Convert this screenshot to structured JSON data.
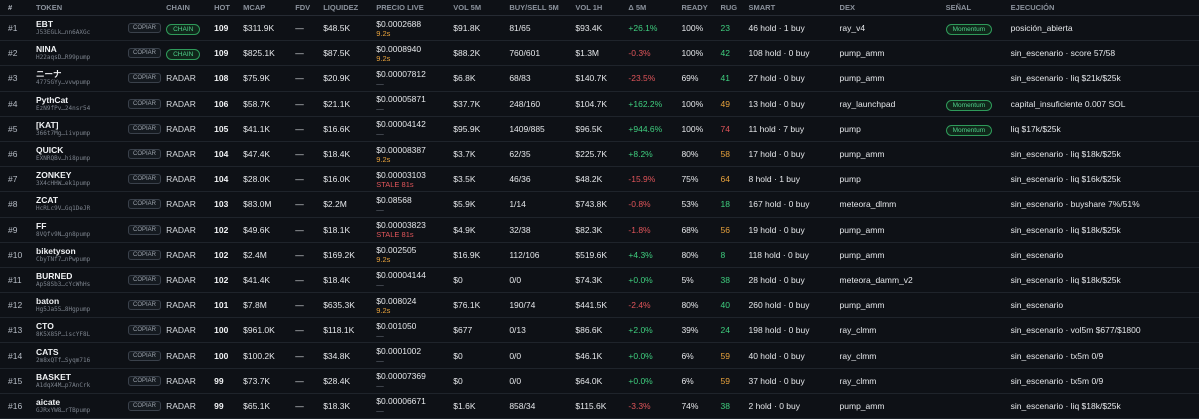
{
  "headers": {
    "rank": "#",
    "token": "TOKEN",
    "chain": "CHAIN",
    "hot": "HOT",
    "mcap": "MCAP",
    "fdv": "FDV",
    "liquidez": "LIQUIDEZ",
    "precio": "PRECIO LIVE",
    "vol5m": "VOL 5M",
    "buysell": "BUY/SELL 5M",
    "vol1h": "VOL 1H",
    "delta": "Δ 5M",
    "ready": "READY",
    "rug": "RUG",
    "smart": "SMART",
    "dex": "DEX",
    "senal": "SEÑAL",
    "ejecucion": "EJECUCIÓN"
  },
  "copy_label": "COPIAR",
  "rows": [
    {
      "rank": "#1",
      "name": "EBT",
      "addr": "J53EGLk…nn6AXGc",
      "chain": "CHAIN",
      "hot": "109",
      "mcap": "$311.9K",
      "fdv": "—",
      "liq": "$48.5K",
      "price": "$0.0002688",
      "sub": "9.2s",
      "sub_class": "sub-orange",
      "vol5m": "$91.8K",
      "bs": "81/65",
      "vol1h": "$93.4K",
      "delta": "+26.1%",
      "delta_class": "pos",
      "ready": "100%",
      "rug": "23",
      "rug_class": "rug-green",
      "smart": "46 hold · 1 buy",
      "dex": "ray_v4",
      "signal": "Momentum",
      "exec": "posición_abierta"
    },
    {
      "rank": "#2",
      "name": "NINA",
      "addr": "H22aqsD…R99pump",
      "chain": "CHAIN",
      "hot": "109",
      "mcap": "$825.1K",
      "fdv": "—",
      "liq": "$87.5K",
      "price": "$0.0008940",
      "sub": "9.2s",
      "sub_class": "sub-orange",
      "vol5m": "$88.2K",
      "bs": "760/601",
      "vol1h": "$1.3M",
      "delta": "-0.3%",
      "delta_class": "neg",
      "ready": "100%",
      "rug": "42",
      "rug_class": "rug-green",
      "smart": "108 hold · 0 buy",
      "dex": "pump_amm",
      "signal": "",
      "exec": "sin_escenario · score 57/58"
    },
    {
      "rank": "#3",
      "name": "ニーナ",
      "addr": "4775GYy…vvwpump",
      "chain": "RADAR",
      "hot": "108",
      "mcap": "$75.9K",
      "fdv": "—",
      "liq": "$20.9K",
      "price": "$0.00007812",
      "sub": "—",
      "sub_class": "sub-grey",
      "vol5m": "$6.8K",
      "bs": "68/83",
      "vol1h": "$140.7K",
      "delta": "-23.5%",
      "delta_class": "neg",
      "ready": "69%",
      "rug": "41",
      "rug_class": "rug-green",
      "smart": "27 hold · 0 buy",
      "dex": "pump_amm",
      "signal": "",
      "exec": "sin_escenario · liq $21k/$25k"
    },
    {
      "rank": "#4",
      "name": "PythCat",
      "addr": "EzN9fPv…24nsr54",
      "chain": "RADAR",
      "hot": "106",
      "mcap": "$58.7K",
      "fdv": "—",
      "liq": "$21.1K",
      "price": "$0.00005871",
      "sub": "—",
      "sub_class": "sub-grey",
      "vol5m": "$37.7K",
      "bs": "248/160",
      "vol1h": "$104.7K",
      "delta": "+162.2%",
      "delta_class": "pos",
      "ready": "100%",
      "rug": "49",
      "rug_class": "rug-orange",
      "smart": "13 hold · 0 buy",
      "dex": "ray_launchpad",
      "signal": "Momentum",
      "exec": "capital_insuficiente 0.007 SOL"
    },
    {
      "rank": "#5",
      "name": "[KAT]",
      "addr": "366t7Mg…iivpump",
      "chain": "RADAR",
      "hot": "105",
      "mcap": "$41.1K",
      "fdv": "—",
      "liq": "$16.6K",
      "price": "$0.00004142",
      "sub": "—",
      "sub_class": "sub-grey",
      "vol5m": "$95.9K",
      "bs": "1409/885",
      "vol1h": "$96.5K",
      "delta": "+944.6%",
      "delta_class": "pos",
      "ready": "100%",
      "rug": "74",
      "rug_class": "rug-red",
      "smart": "11 hold · 7 buy",
      "dex": "pump",
      "signal": "Momentum",
      "exec": "liq $17k/$25k"
    },
    {
      "rank": "#6",
      "name": "QUICK",
      "addr": "EXNRQBv…hi8pump",
      "chain": "RADAR",
      "hot": "104",
      "mcap": "$47.4K",
      "fdv": "—",
      "liq": "$18.4K",
      "price": "$0.00008387",
      "sub": "9.2s",
      "sub_class": "sub-orange",
      "vol5m": "$3.7K",
      "bs": "62/35",
      "vol1h": "$225.7K",
      "delta": "+8.2%",
      "delta_class": "pos",
      "ready": "80%",
      "rug": "58",
      "rug_class": "rug-orange",
      "smart": "17 hold · 0 buy",
      "dex": "pump_amm",
      "signal": "",
      "exec": "sin_escenario · liq $18k/$25k"
    },
    {
      "rank": "#7",
      "name": "ZONKEY",
      "addr": "3X4cHHW…ek1pump",
      "chain": "RADAR",
      "hot": "104",
      "mcap": "$28.0K",
      "fdv": "—",
      "liq": "$16.0K",
      "price": "$0.00003103",
      "sub": "STALE 81s",
      "sub_class": "sub-red",
      "vol5m": "$3.5K",
      "bs": "46/36",
      "vol1h": "$48.2K",
      "delta": "-15.9%",
      "delta_class": "neg",
      "ready": "75%",
      "rug": "64",
      "rug_class": "rug-orange",
      "smart": "8 hold · 1 buy",
      "dex": "pump",
      "signal": "",
      "exec": "sin_escenario · liq $16k/$25k"
    },
    {
      "rank": "#8",
      "name": "ZCAT",
      "addr": "HcRLc9V…Gq1DeJR",
      "chain": "RADAR",
      "hot": "103",
      "mcap": "$83.0M",
      "fdv": "—",
      "liq": "$2.2M",
      "price": "$0.08568",
      "sub": "—",
      "sub_class": "sub-grey",
      "vol5m": "$5.9K",
      "bs": "1/14",
      "vol1h": "$743.8K",
      "delta": "-0.8%",
      "delta_class": "neg",
      "ready": "53%",
      "rug": "18",
      "rug_class": "rug-green",
      "smart": "167 hold · 0 buy",
      "dex": "meteora_dlmm",
      "signal": "",
      "exec": "sin_escenario · buyshare 7%/51%"
    },
    {
      "rank": "#9",
      "name": "FF",
      "addr": "8VQfv9N…gn8pump",
      "chain": "RADAR",
      "hot": "102",
      "mcap": "$49.6K",
      "fdv": "—",
      "liq": "$18.1K",
      "price": "$0.00003823",
      "sub": "STALE 81s",
      "sub_class": "sub-red",
      "vol5m": "$4.9K",
      "bs": "32/38",
      "vol1h": "$82.3K",
      "delta": "-1.8%",
      "delta_class": "neg",
      "ready": "68%",
      "rug": "56",
      "rug_class": "rug-orange",
      "smart": "19 hold · 0 buy",
      "dex": "pump_amm",
      "signal": "",
      "exec": "sin_escenario · liq $18k/$25k"
    },
    {
      "rank": "#10",
      "name": "biketyson",
      "addr": "CbyTNf7…nPwpump",
      "chain": "RADAR",
      "hot": "102",
      "mcap": "$2.4M",
      "fdv": "—",
      "liq": "$169.2K",
      "price": "$0.002505",
      "sub": "9.2s",
      "sub_class": "sub-orange",
      "vol5m": "$16.9K",
      "bs": "112/106",
      "vol1h": "$519.6K",
      "delta": "+4.3%",
      "delta_class": "pos",
      "ready": "80%",
      "rug": "8",
      "rug_class": "rug-green",
      "smart": "118 hold · 0 buy",
      "dex": "pump_amm",
      "signal": "",
      "exec": "sin_escenario"
    },
    {
      "rank": "#11",
      "name": "BURNED",
      "addr": "Ap58Sb3…cYcWhHs",
      "chain": "RADAR",
      "hot": "102",
      "mcap": "$41.4K",
      "fdv": "—",
      "liq": "$18.4K",
      "price": "$0.00004144",
      "sub": "—",
      "sub_class": "sub-grey",
      "vol5m": "$0",
      "bs": "0/0",
      "vol1h": "$74.3K",
      "delta": "+0.0%",
      "delta_class": "neu",
      "ready": "5%",
      "rug": "38",
      "rug_class": "rug-green",
      "smart": "28 hold · 0 buy",
      "dex": "meteora_damm_v2",
      "signal": "",
      "exec": "sin_escenario · liq $18k/$25k"
    },
    {
      "rank": "#12",
      "name": "baton",
      "addr": "Hg5Ja55…8Hgpump",
      "chain": "RADAR",
      "hot": "101",
      "mcap": "$7.8M",
      "fdv": "—",
      "liq": "$635.3K",
      "price": "$0.008024",
      "sub": "9.2s",
      "sub_class": "sub-orange",
      "vol5m": "$76.1K",
      "bs": "190/74",
      "vol1h": "$441.5K",
      "delta": "-2.4%",
      "delta_class": "neg",
      "ready": "80%",
      "rug": "40",
      "rug_class": "rug-green",
      "smart": "260 hold · 0 buy",
      "dex": "pump_amm",
      "signal": "",
      "exec": "sin_escenario"
    },
    {
      "rank": "#13",
      "name": "CTO",
      "addr": "8K5X85P…iscYF8L",
      "chain": "RADAR",
      "hot": "100",
      "mcap": "$961.0K",
      "fdv": "—",
      "liq": "$118.1K",
      "price": "$0.001050",
      "sub": "—",
      "sub_class": "sub-grey",
      "vol5m": "$677",
      "bs": "0/13",
      "vol1h": "$86.6K",
      "delta": "+2.0%",
      "delta_class": "pos",
      "ready": "39%",
      "rug": "24",
      "rug_class": "rug-green",
      "smart": "198 hold · 0 buy",
      "dex": "ray_clmm",
      "signal": "",
      "exec": "sin_escenario · vol5m $677/$1800"
    },
    {
      "rank": "#14",
      "name": "CATS",
      "addr": "2m8xQTf…Syqm716",
      "chain": "RADAR",
      "hot": "100",
      "mcap": "$100.2K",
      "fdv": "—",
      "liq": "$34.8K",
      "price": "$0.0001002",
      "sub": "—",
      "sub_class": "sub-grey",
      "vol5m": "$0",
      "bs": "0/0",
      "vol1h": "$46.1K",
      "delta": "+0.0%",
      "delta_class": "neu",
      "ready": "6%",
      "rug": "59",
      "rug_class": "rug-orange",
      "smart": "40 hold · 0 buy",
      "dex": "ray_clmm",
      "signal": "",
      "exec": "sin_escenario · tx5m 0/9"
    },
    {
      "rank": "#15",
      "name": "BASKET",
      "addr": "A1dqX4M…p7AnCrk",
      "chain": "RADAR",
      "hot": "99",
      "mcap": "$73.7K",
      "fdv": "—",
      "liq": "$28.4K",
      "price": "$0.00007369",
      "sub": "—",
      "sub_class": "sub-grey",
      "vol5m": "$0",
      "bs": "0/0",
      "vol1h": "$64.0K",
      "delta": "+0.0%",
      "delta_class": "neu",
      "ready": "6%",
      "rug": "59",
      "rug_class": "rug-orange",
      "smart": "37 hold · 0 buy",
      "dex": "ray_clmm",
      "signal": "",
      "exec": "sin_escenario · tx5m 0/9"
    },
    {
      "rank": "#16",
      "name": "aicate",
      "addr": "GJRxYW8…rTBpump",
      "chain": "RADAR",
      "hot": "99",
      "mcap": "$65.1K",
      "fdv": "—",
      "liq": "$18.3K",
      "price": "$0.00006671",
      "sub": "—",
      "sub_class": "sub-grey",
      "vol5m": "$1.6K",
      "bs": "858/34",
      "vol1h": "$115.6K",
      "delta": "-3.3%",
      "delta_class": "neg",
      "ready": "74%",
      "rug": "38",
      "rug_class": "rug-green",
      "smart": "2 hold · 0 buy",
      "dex": "pump_amm",
      "signal": "",
      "exec": "sin_escenario · liq $18k/$25k"
    }
  ],
  "colors": {
    "background": "#0e1116",
    "positive": "#3fcf7f",
    "negative": "#e0555a",
    "warning": "#e8a23c",
    "chain_pill": "#4fd08a"
  }
}
